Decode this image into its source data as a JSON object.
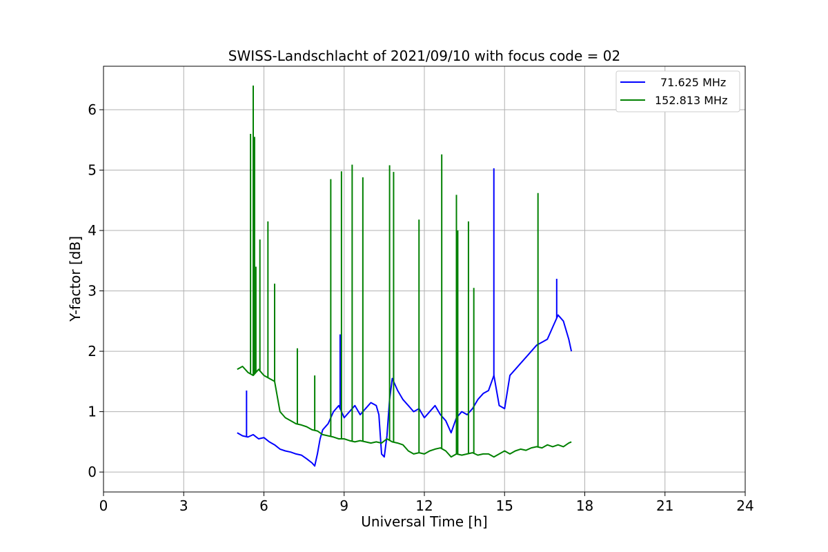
{
  "chart_data": {
    "type": "line",
    "title": "SWISS-Landschlacht of 2021/09/10 with focus code = 02",
    "xlabel": "Universal Time [h]",
    "ylabel": "Y-factor [dB]",
    "xlim": [
      0,
      24
    ],
    "ylim": [
      -0.33,
      6.72
    ],
    "xticks": [
      0,
      3,
      6,
      9,
      12,
      15,
      18,
      21,
      24
    ],
    "yticks": [
      0,
      1,
      2,
      3,
      4,
      5,
      6
    ],
    "grid": true,
    "legend_position": "top-right",
    "series": [
      {
        "name": "71.625 MHz",
        "color": "#0000ff",
        "x": [
          5.0,
          5.2,
          5.4,
          5.6,
          5.8,
          6.0,
          6.2,
          6.4,
          6.6,
          6.8,
          7.0,
          7.2,
          7.4,
          7.6,
          7.8,
          7.9,
          8.0,
          8.1,
          8.2,
          8.4,
          8.6,
          8.8,
          9.0,
          9.2,
          9.4,
          9.6,
          9.8,
          10.0,
          10.2,
          10.3,
          10.4,
          10.5,
          10.6,
          10.7,
          10.8,
          11.0,
          11.2,
          11.4,
          11.6,
          11.8,
          12.0,
          12.2,
          12.4,
          12.6,
          12.8,
          13.0,
          13.2,
          13.4,
          13.6,
          13.8,
          14.0,
          14.2,
          14.4,
          14.6,
          14.8,
          15.0,
          15.2,
          15.4,
          15.6,
          15.8,
          16.0,
          16.2,
          16.4,
          16.6,
          16.8,
          17.0,
          17.2,
          17.4,
          17.5
        ],
        "y": [
          0.65,
          0.6,
          0.58,
          0.62,
          0.55,
          0.57,
          0.5,
          0.45,
          0.38,
          0.35,
          0.33,
          0.3,
          0.28,
          0.22,
          0.15,
          0.1,
          0.3,
          0.55,
          0.7,
          0.8,
          1.0,
          1.1,
          0.9,
          1.0,
          1.1,
          0.95,
          1.05,
          1.15,
          1.1,
          0.95,
          0.3,
          0.25,
          0.6,
          1.2,
          1.55,
          1.35,
          1.2,
          1.1,
          1.0,
          1.05,
          0.9,
          1.0,
          1.1,
          0.95,
          0.85,
          0.65,
          0.9,
          1.0,
          0.95,
          1.05,
          1.2,
          1.3,
          1.35,
          1.6,
          1.1,
          1.05,
          1.6,
          1.7,
          1.8,
          1.9,
          2.0,
          2.1,
          2.15,
          2.2,
          2.4,
          2.6,
          2.5,
          2.2,
          2.0
        ],
        "spikes": [
          [
            5.35,
            1.35
          ],
          [
            8.85,
            2.28
          ],
          [
            10.85,
            1.98
          ],
          [
            14.6,
            5.03
          ],
          [
            16.95,
            3.2
          ]
        ]
      },
      {
        "name": "152.813 MHz",
        "color": "#008000",
        "x": [
          5.0,
          5.2,
          5.4,
          5.6,
          5.8,
          6.0,
          6.2,
          6.4,
          6.6,
          6.8,
          7.0,
          7.2,
          7.4,
          7.6,
          7.8,
          8.0,
          8.2,
          8.4,
          8.6,
          8.8,
          9.0,
          9.2,
          9.4,
          9.6,
          9.8,
          10.0,
          10.2,
          10.4,
          10.6,
          10.8,
          11.0,
          11.2,
          11.4,
          11.6,
          11.8,
          12.0,
          12.2,
          12.4,
          12.6,
          12.8,
          13.0,
          13.2,
          13.4,
          13.6,
          13.8,
          14.0,
          14.2,
          14.4,
          14.6,
          14.8,
          15.0,
          15.2,
          15.4,
          15.6,
          15.8,
          16.0,
          16.2,
          16.4,
          16.6,
          16.8,
          17.0,
          17.2,
          17.4,
          17.5
        ],
        "y": [
          1.7,
          1.75,
          1.65,
          1.6,
          1.7,
          1.6,
          1.55,
          1.5,
          1.0,
          0.9,
          0.85,
          0.8,
          0.78,
          0.75,
          0.7,
          0.68,
          0.62,
          0.6,
          0.58,
          0.55,
          0.55,
          0.52,
          0.5,
          0.52,
          0.5,
          0.48,
          0.5,
          0.48,
          0.55,
          0.5,
          0.48,
          0.45,
          0.35,
          0.3,
          0.32,
          0.3,
          0.35,
          0.38,
          0.4,
          0.35,
          0.25,
          0.3,
          0.28,
          0.3,
          0.32,
          0.28,
          0.3,
          0.3,
          0.25,
          0.3,
          0.35,
          0.3,
          0.35,
          0.38,
          0.36,
          0.4,
          0.42,
          0.4,
          0.45,
          0.42,
          0.45,
          0.42,
          0.48,
          0.5
        ],
        "spikes": [
          [
            5.5,
            5.6
          ],
          [
            5.6,
            6.4
          ],
          [
            5.65,
            5.55
          ],
          [
            5.7,
            3.4
          ],
          [
            5.85,
            3.85
          ],
          [
            6.15,
            4.15
          ],
          [
            6.4,
            3.12
          ],
          [
            7.25,
            2.05
          ],
          [
            7.9,
            1.6
          ],
          [
            8.5,
            4.85
          ],
          [
            8.9,
            4.98
          ],
          [
            9.3,
            5.09
          ],
          [
            9.7,
            4.88
          ],
          [
            10.7,
            5.08
          ],
          [
            10.85,
            4.97
          ],
          [
            11.8,
            4.18
          ],
          [
            12.65,
            5.26
          ],
          [
            13.2,
            4.59
          ],
          [
            13.25,
            4.0
          ],
          [
            13.65,
            4.15
          ],
          [
            13.85,
            3.05
          ],
          [
            16.25,
            4.62
          ]
        ]
      }
    ]
  }
}
